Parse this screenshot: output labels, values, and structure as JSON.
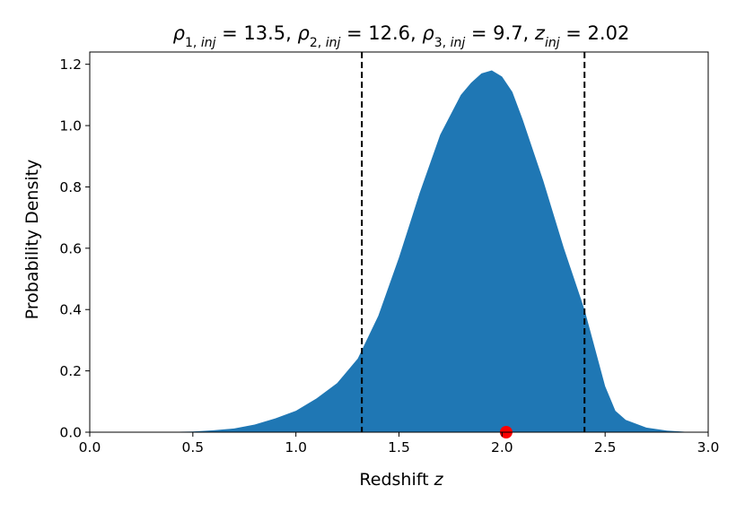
{
  "chart_data": {
    "type": "area",
    "title": {
      "rho1": "13.5",
      "rho2": "12.6",
      "rho3": "9.7",
      "z_inj": "2.02"
    },
    "xlabel": "Redshift",
    "xlabel_symbol": "z",
    "ylabel": "Probability Density",
    "xlim": [
      0.0,
      3.0
    ],
    "ylim": [
      0.0,
      1.24
    ],
    "xticks": [
      "0.0",
      "0.5",
      "1.0",
      "1.5",
      "2.0",
      "2.5",
      "3.0"
    ],
    "yticks": [
      "0.0",
      "0.2",
      "0.4",
      "0.6",
      "0.8",
      "1.0",
      "1.2"
    ],
    "grid": false,
    "fill_color": "#1f77b4",
    "series": [
      {
        "x": [
          0.3,
          0.5,
          0.6,
          0.7,
          0.8,
          0.9,
          1.0,
          1.1,
          1.2,
          1.3,
          1.4,
          1.5,
          1.6,
          1.7,
          1.8,
          1.85,
          1.9,
          1.95,
          2.0,
          2.05,
          2.1,
          2.2,
          2.3,
          2.4,
          2.5,
          2.55,
          2.6,
          2.7,
          2.8,
          2.9,
          3.0
        ],
        "y": [
          0.0,
          0.002,
          0.006,
          0.012,
          0.025,
          0.045,
          0.07,
          0.11,
          0.16,
          0.24,
          0.38,
          0.57,
          0.78,
          0.97,
          1.1,
          1.14,
          1.17,
          1.18,
          1.16,
          1.11,
          1.02,
          0.82,
          0.6,
          0.4,
          0.15,
          0.07,
          0.04,
          0.015,
          0.005,
          0.001,
          0.0
        ]
      }
    ],
    "vlines": [
      1.32,
      2.4
    ],
    "vline_style": "dashed",
    "vline_color": "#000000",
    "marker": {
      "x": 2.02,
      "y": 0.0,
      "color": "#ff0000"
    }
  }
}
